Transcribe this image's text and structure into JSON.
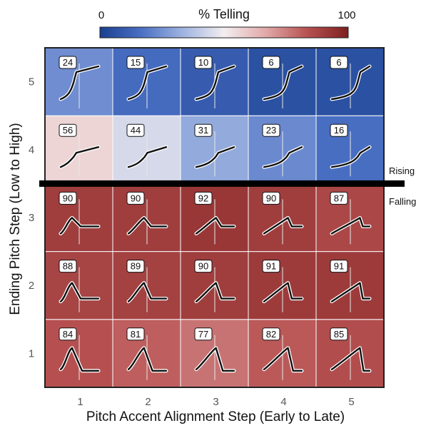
{
  "chart_data": {
    "type": "heatmap",
    "title": "",
    "xlabel": "Pitch Accent Alignment Step (Early to Late)",
    "ylabel": "Ending Pitch Step (Low to High)",
    "x_categories": [
      "1",
      "2",
      "3",
      "4",
      "5"
    ],
    "y_categories": [
      "1",
      "2",
      "3",
      "4",
      "5"
    ],
    "colorbar": {
      "title": "% Telling",
      "min_label": "0",
      "max_label": "100",
      "range": [
        0,
        100
      ],
      "colors": [
        "#1a3f8f",
        "#4a70c4",
        "#9fb3e0",
        "#f3eef0",
        "#e2a9a9",
        "#b85252",
        "#7d1f1f"
      ]
    },
    "values": [
      [
        84,
        81,
        77,
        82,
        85
      ],
      [
        88,
        89,
        90,
        91,
        91
      ],
      [
        90,
        90,
        92,
        90,
        87
      ],
      [
        56,
        44,
        31,
        23,
        16
      ],
      [
        24,
        15,
        10,
        6,
        6
      ]
    ],
    "divider_labels": {
      "above": "Rising",
      "below": "Falling"
    }
  }
}
